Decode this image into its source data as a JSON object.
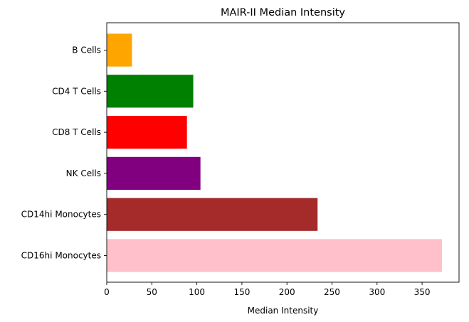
{
  "chart_data": {
    "type": "bar",
    "orientation": "horizontal",
    "title": "MAIR-II Median Intensity",
    "xlabel": "Median Intensity",
    "ylabel": "",
    "categories": [
      "B Cells",
      "CD4 T Cells",
      "CD8 T Cells",
      "NK Cells",
      "CD14hi Monocytes",
      "CD16hi Monocytes"
    ],
    "values": [
      28,
      96,
      89,
      104,
      234,
      372
    ],
    "colors": [
      "#ffa500",
      "#008000",
      "#ff0000",
      "#800080",
      "#a52a2a",
      "#ffc0cb"
    ],
    "xlim": [
      0,
      391
    ],
    "xticks": [
      0,
      50,
      100,
      150,
      200,
      250,
      300,
      350
    ],
    "grid": false,
    "legend": "none"
  }
}
